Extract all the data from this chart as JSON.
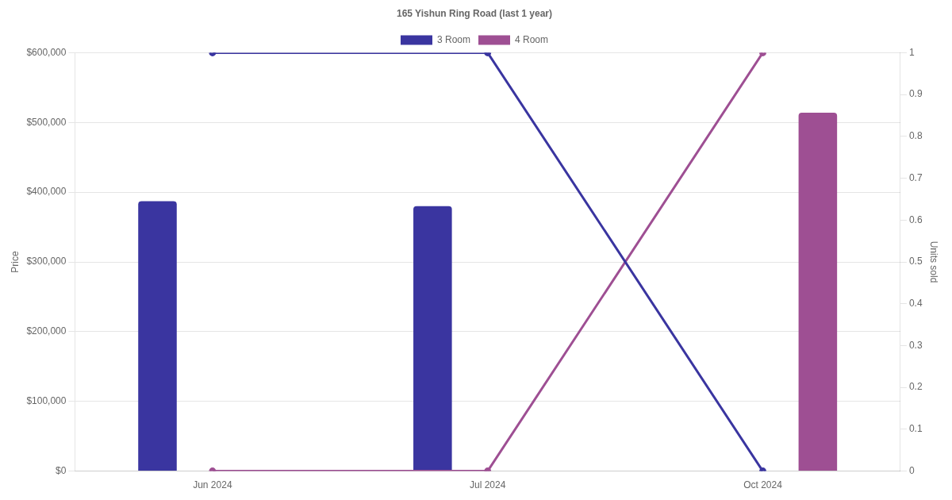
{
  "chart_data": {
    "type": "bar",
    "title": "165 Yishun Ring Road (last 1 year)",
    "ylabel": "Price",
    "y2label": "Units sold",
    "categories": [
      "Jun 2024",
      "Jul 2024",
      "Oct 2024"
    ],
    "series": [
      {
        "name": "3 Room",
        "color": "#3a35a0",
        "values": [
          387000,
          380000,
          null
        ]
      },
      {
        "name": "4 Room",
        "color": "#9e4f93",
        "values": [
          null,
          null,
          514000
        ]
      },
      {
        "type": "line",
        "axis": "y2",
        "color": "#3a35a0",
        "values": [
          1,
          1,
          0
        ]
      },
      {
        "type": "line",
        "axis": "y2",
        "color": "#9e4f93",
        "values": [
          0,
          0,
          1
        ]
      }
    ],
    "ylim": [
      0,
      600000
    ],
    "yticks": [
      {
        "value": 0,
        "label": "$0"
      },
      {
        "value": 100000,
        "label": "$100,000"
      },
      {
        "value": 200000,
        "label": "$200,000"
      },
      {
        "value": 300000,
        "label": "$300,000"
      },
      {
        "value": 400000,
        "label": "$400,000"
      },
      {
        "value": 500000,
        "label": "$500,000"
      },
      {
        "value": 600000,
        "label": "$600,000"
      }
    ],
    "y2lim": [
      0,
      1
    ],
    "y2ticks": [
      0,
      0.1,
      0.2,
      0.3,
      0.4,
      0.5,
      0.6,
      0.7,
      0.8,
      0.9,
      1
    ],
    "grid": "y",
    "legend": "top",
    "marker": "circle",
    "line_style": "solid"
  }
}
